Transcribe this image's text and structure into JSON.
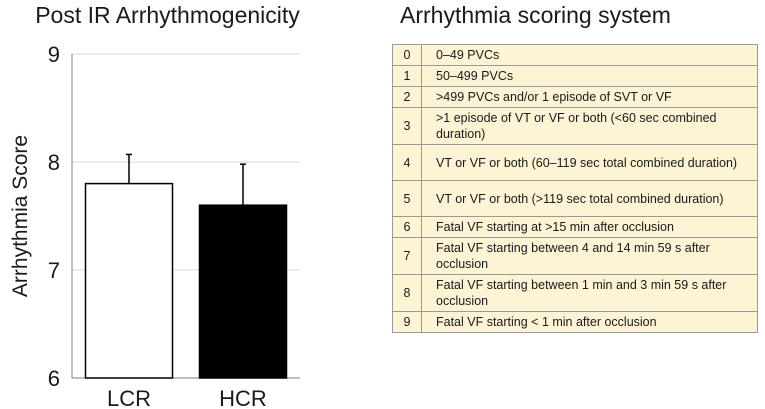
{
  "chart_data": {
    "type": "bar",
    "title": "Post IR Arrhythmogenicity",
    "xlabel": "",
    "ylabel": "Arrhythmia Score",
    "categories": [
      "LCR",
      "HCR"
    ],
    "values": [
      7.8,
      7.6
    ],
    "error_bars": [
      0.27,
      0.38
    ],
    "bar_colors": [
      "#ffffff",
      "#000000"
    ],
    "ylim": [
      6,
      9
    ],
    "yticks": [
      6,
      7,
      8,
      9
    ],
    "grid": true
  },
  "table": {
    "title": "Arrhythmia scoring system",
    "rows": [
      {
        "score": "0",
        "desc": "0–49 PVCs"
      },
      {
        "score": "1",
        "desc": "50–499 PVCs"
      },
      {
        "score": "2",
        "desc": ">499 PVCs and/or 1 episode of SVT or VF"
      },
      {
        "score": "3",
        "desc": ">1 episode of VT or VF or both (<60 sec combined duration)"
      },
      {
        "score": "4",
        "desc": "VT or VF or both (60–119 sec total combined duration)"
      },
      {
        "score": "5",
        "desc": "VT or VF or both (>119 sec total combined duration)"
      },
      {
        "score": "6",
        "desc": "Fatal VF starting at >15 min after occlusion"
      },
      {
        "score": "7",
        "desc": "Fatal VF starting between 4 and 14 min 59 s after occlusion"
      },
      {
        "score": "8",
        "desc": "Fatal VF starting between 1 min and 3 min 59 s after occlusion"
      },
      {
        "score": "9",
        "desc": "Fatal VF starting < 1 min after occlusion"
      }
    ]
  }
}
